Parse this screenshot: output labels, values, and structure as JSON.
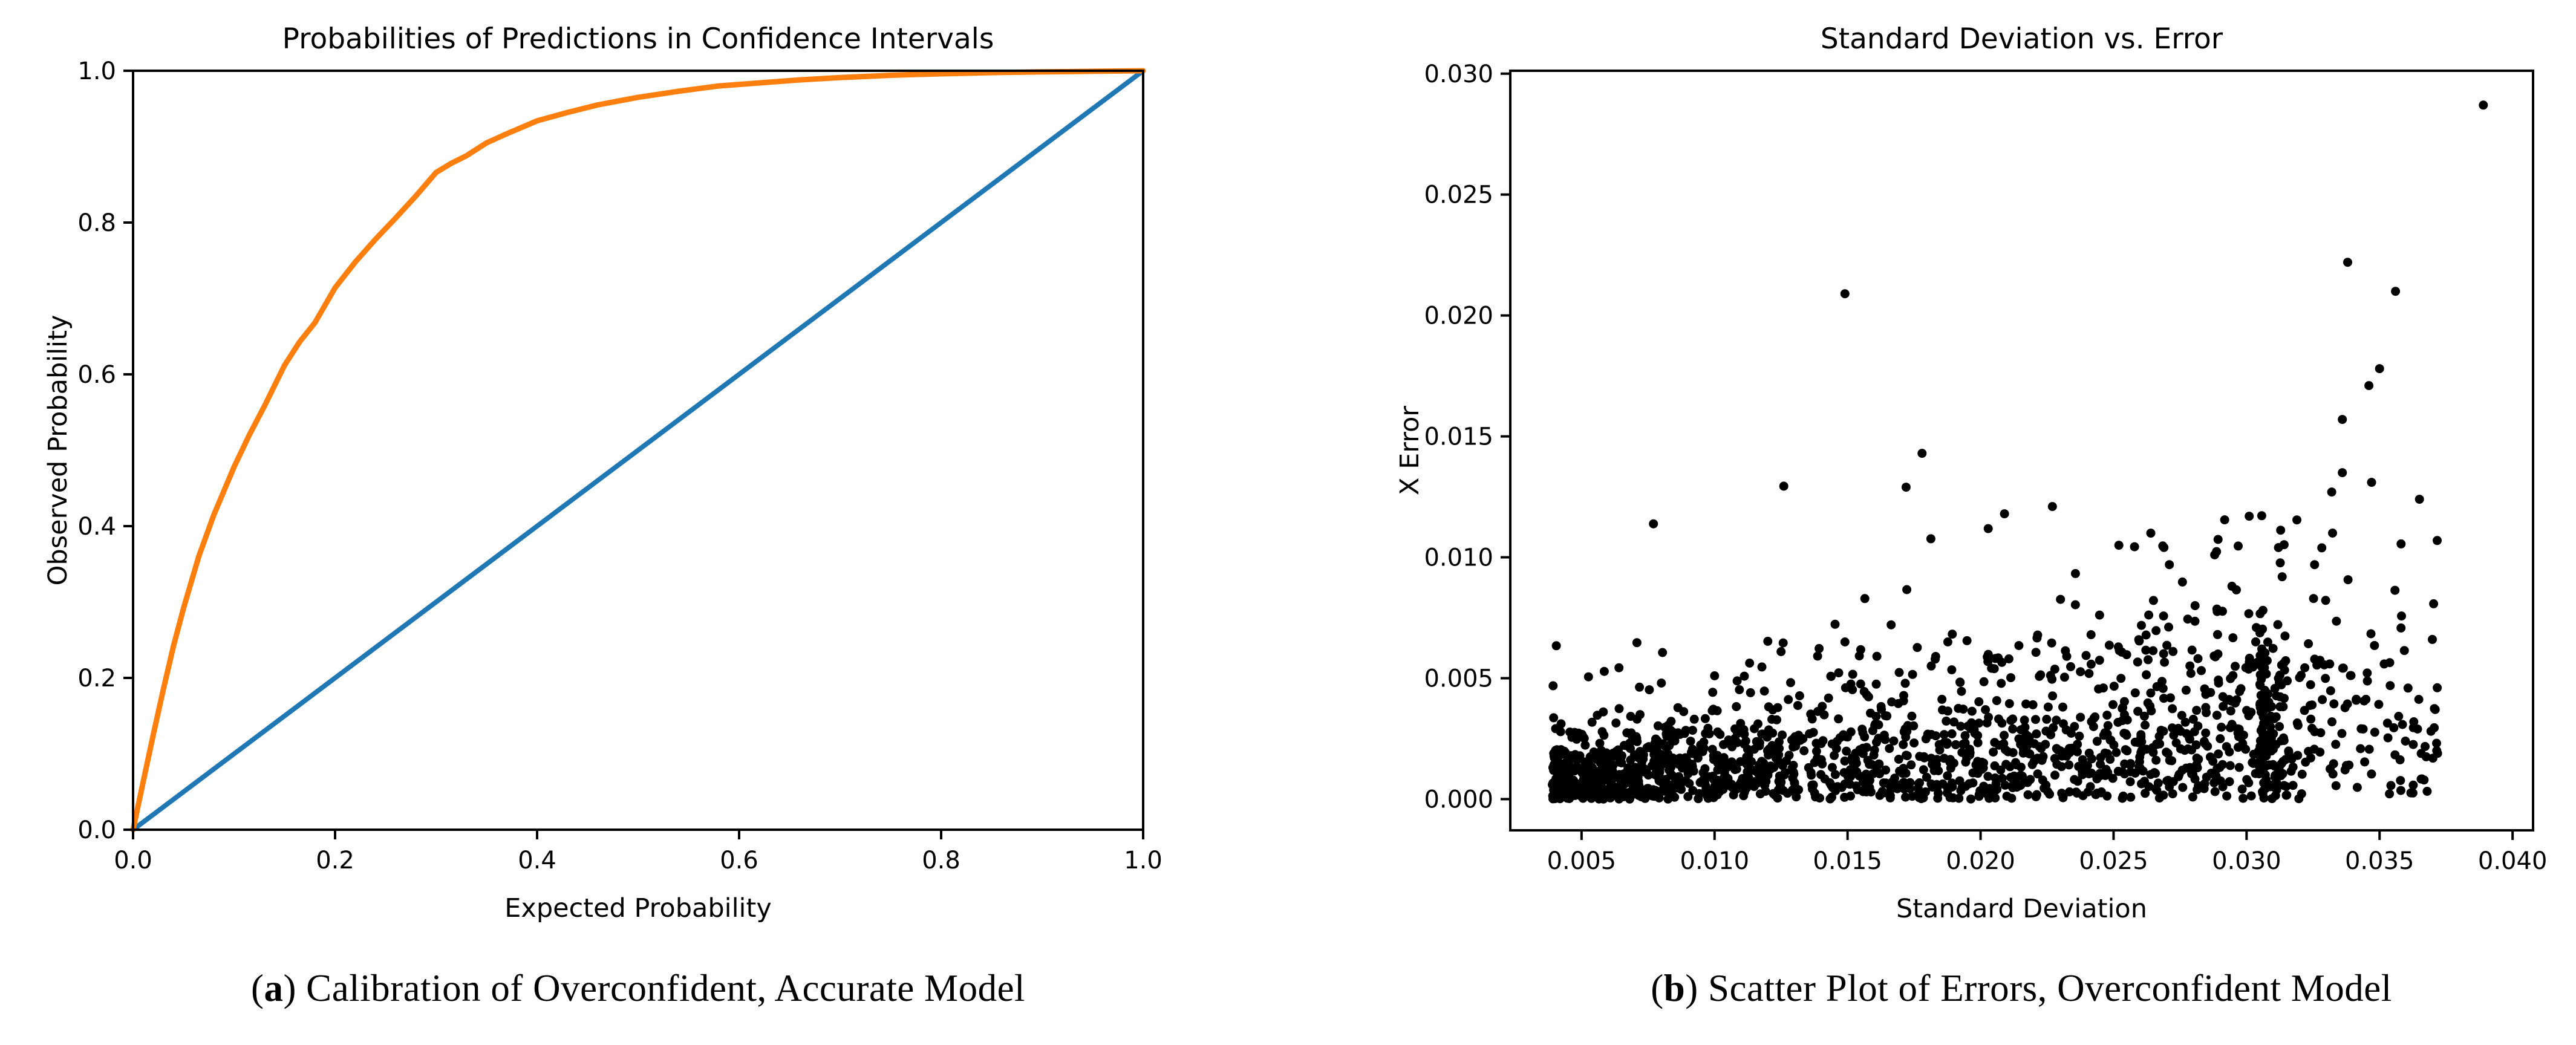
{
  "page": {
    "background": "#ffffff"
  },
  "figures": [
    {
      "caption_open": "(",
      "caption_letter": "a",
      "caption_close": ")",
      "caption_text": "Calibration of Overconfident, Accurate Model"
    },
    {
      "caption_open": "(",
      "caption_letter": "b",
      "caption_close": ")",
      "caption_text": "Scatter Plot of Errors, Overconfident Model"
    }
  ],
  "chart_data": [
    {
      "type": "line",
      "title": "Probabilities of Predictions in Confidence Intervals",
      "xlabel": "Expected Probability",
      "ylabel": "Observed Probability",
      "xlim": [
        0.0,
        1.0
      ],
      "ylim": [
        0.0,
        1.0
      ],
      "xticks": [
        0.0,
        0.2,
        0.4,
        0.6,
        0.8,
        1.0
      ],
      "xtick_labels": [
        "0.0",
        "0.2",
        "0.4",
        "0.6",
        "0.8",
        "1.0"
      ],
      "yticks": [
        0.0,
        0.2,
        0.4,
        0.6,
        0.8,
        1.0
      ],
      "ytick_labels": [
        "0.0",
        "0.2",
        "0.4",
        "0.6",
        "0.8",
        "1.0"
      ],
      "grid": false,
      "legend": "none",
      "series": [
        {
          "name": "identity-diagonal",
          "color": "#1f77b4",
          "line_width": 8,
          "x": [
            0.0,
            1.0
          ],
          "y": [
            0.0,
            1.0
          ]
        },
        {
          "name": "calibration-curve",
          "color": "#ff7f0e",
          "line_width": 9,
          "x": [
            0.0,
            0.01,
            0.02,
            0.03,
            0.04,
            0.05,
            0.065,
            0.08,
            0.1,
            0.115,
            0.13,
            0.15,
            0.165,
            0.18,
            0.2,
            0.22,
            0.24,
            0.26,
            0.28,
            0.3,
            0.315,
            0.33,
            0.35,
            0.37,
            0.4,
            0.43,
            0.46,
            0.5,
            0.54,
            0.58,
            0.62,
            0.66,
            0.7,
            0.75,
            0.8,
            0.85,
            0.9,
            0.95,
            1.0
          ],
          "y": [
            0.0,
            0.063,
            0.125,
            0.185,
            0.242,
            0.292,
            0.36,
            0.415,
            0.478,
            0.52,
            0.558,
            0.612,
            0.643,
            0.668,
            0.714,
            0.748,
            0.778,
            0.806,
            0.835,
            0.866,
            0.878,
            0.888,
            0.905,
            0.917,
            0.934,
            0.945,
            0.955,
            0.965,
            0.973,
            0.98,
            0.984,
            0.988,
            0.991,
            0.994,
            0.996,
            0.9975,
            0.9985,
            0.9993,
            1.0
          ]
        }
      ]
    },
    {
      "type": "scatter",
      "title": "Standard Deviation vs. Error",
      "xlabel": "Standard Deviation",
      "ylabel": "X Error",
      "xlim": [
        0.00232,
        0.04077
      ],
      "ylim": [
        -0.00129,
        0.03012
      ],
      "xticks": [
        0.005,
        0.01,
        0.015,
        0.02,
        0.025,
        0.03,
        0.035,
        0.04
      ],
      "xtick_labels": [
        "0.005",
        "0.010",
        "0.015",
        "0.020",
        "0.025",
        "0.030",
        "0.035",
        "0.040"
      ],
      "yticks": [
        0.0,
        0.005,
        0.01,
        0.015,
        0.02,
        0.025,
        0.03
      ],
      "ytick_labels": [
        "0.000",
        "0.005",
        "0.010",
        "0.015",
        "0.020",
        "0.025",
        "0.030"
      ],
      "grid": false,
      "legend": "none",
      "marker": {
        "color": "#000000",
        "radius_px": 7.5
      },
      "x_data_range": [
        0.004,
        0.0392
      ],
      "y_data_range": [
        0.0,
        0.0288
      ],
      "outliers": [
        [
          0.0389,
          0.0287
        ],
        [
          0.0149,
          0.0209
        ],
        [
          0.0338,
          0.0222
        ],
        [
          0.0356,
          0.021
        ],
        [
          0.035,
          0.0178
        ],
        [
          0.0346,
          0.0171
        ],
        [
          0.0336,
          0.0157
        ],
        [
          0.0178,
          0.0143
        ],
        [
          0.0172,
          0.0129
        ],
        [
          0.0336,
          0.0135
        ],
        [
          0.0332,
          0.0127
        ],
        [
          0.0347,
          0.0131
        ],
        [
          0.0365,
          0.0124
        ],
        [
          0.0227,
          0.0121
        ],
        [
          0.0209,
          0.0118
        ],
        [
          0.0301,
          0.0117
        ],
        [
          0.0312,
          0.0104
        ],
        [
          0.0252,
          0.0105
        ],
        [
          0.0264,
          0.011
        ],
        [
          0.0288,
          0.0101
        ],
        [
          0.0149,
          0.0065
        ],
        [
          0.0125,
          0.0061
        ],
        [
          0.01,
          0.0051
        ],
        [
          0.008,
          0.0048
        ]
      ],
      "cloud": {
        "seed": 1234567,
        "n": 1700,
        "x_min": 0.0039,
        "x_main_span": 0.0276,
        "x_main_power": 1.25,
        "x_main_frac": 0.88,
        "x_tail_min": 0.0305,
        "x_tail_span": 0.0067,
        "x_tail_power": 1.7,
        "sigma_base": 0.0009,
        "sigma_slope": 0.105,
        "boost_prob": 0.05,
        "boost_min": 1.6,
        "boost_span": 1.2,
        "y_max": 0.0135
      }
    }
  ]
}
